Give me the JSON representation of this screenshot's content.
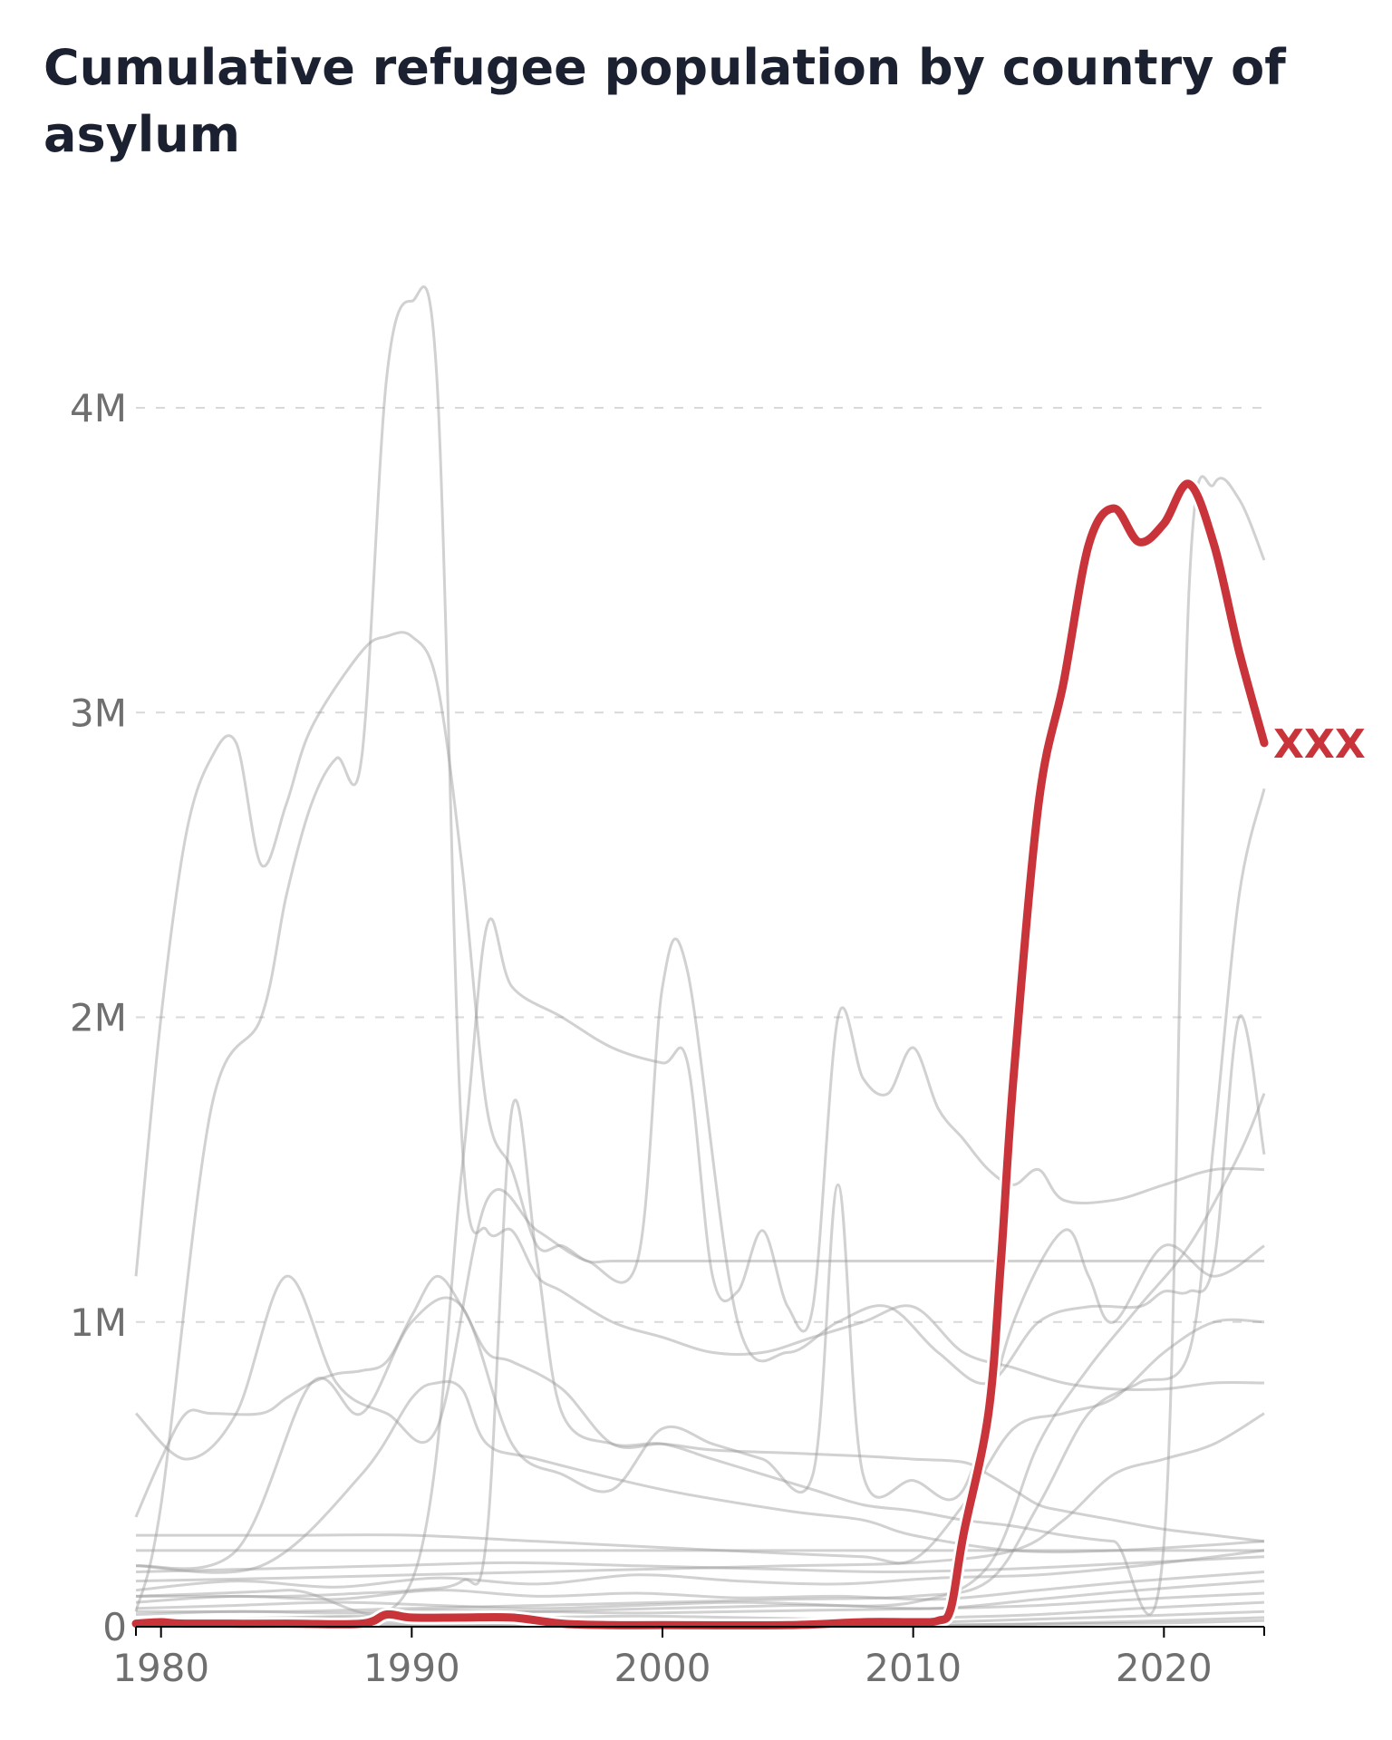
{
  "title": "Cumulative refugee population by country of asylum",
  "colors": {
    "highlight": "#c8343a",
    "background_lines": "#9a9a9a",
    "grid": "#d9d9d9"
  },
  "chart_data": {
    "type": "line",
    "title": "Cumulative refugee population by country of asylum",
    "xlabel": "",
    "ylabel": "",
    "xlim": [
      1979,
      2024
    ],
    "ylim": [
      0,
      4000000
    ],
    "x_ticks": [
      1980,
      1990,
      2000,
      2010,
      2020
    ],
    "x_tick_labels": [
      "1980",
      "1990",
      "2000",
      "2010",
      "2020"
    ],
    "y_ticks": [
      0,
      1000000,
      2000000,
      3000000,
      4000000
    ],
    "y_tick_labels": [
      "0",
      "1M",
      "2M",
      "3M",
      "4M"
    ],
    "grid": "horizontal dashed",
    "highlight": {
      "label": "XXX",
      "x": [
        1979,
        1980,
        1981,
        1985,
        1988,
        1989,
        1990,
        1992,
        1994,
        1996,
        1998,
        2000,
        2005,
        2008,
        2010,
        2011,
        2011.5,
        2012,
        2013,
        2013.5,
        2014,
        2015,
        2016,
        2017,
        2018,
        2019,
        2020,
        2021,
        2022,
        2023,
        2024
      ],
      "y": [
        10000,
        15000,
        10000,
        10000,
        10000,
        40000,
        30000,
        30000,
        30000,
        10000,
        5000,
        5000,
        5000,
        15000,
        15000,
        20000,
        60000,
        300000,
        700000,
        1200000,
        1800000,
        2700000,
        3100000,
        3550000,
        3670000,
        3560000,
        3620000,
        3750000,
        3550000,
        3200000,
        2900000
      ]
    },
    "series": [
      {
        "x": [
          1979,
          1980,
          1981,
          1982,
          1984,
          1985,
          1986,
          1987,
          1988,
          1989,
          1990,
          1991,
          1992,
          1993,
          1994,
          1996,
          1998,
          2000,
          2002,
          2005,
          2008,
          2010,
          2012,
          2013,
          2014,
          2015,
          2016,
          2018,
          2020,
          2022,
          2024
        ],
        "y": [
          360000,
          550000,
          700000,
          700000,
          700000,
          750000,
          800000,
          830000,
          840000,
          870000,
          1020000,
          1150000,
          1050000,
          900000,
          870000,
          780000,
          600000,
          600000,
          580000,
          570000,
          560000,
          550000,
          540000,
          500000,
          450000,
          400000,
          380000,
          350000,
          320000,
          300000,
          280000
        ]
      },
      {
        "x": [
          1979,
          1980,
          1981,
          1982,
          1983,
          1984,
          1985,
          1986,
          1988,
          1989,
          1990,
          1991,
          1992,
          1993,
          1994,
          1995,
          1996,
          1997,
          1998,
          2000,
          2002,
          2004,
          2006,
          2008,
          2010,
          2012,
          2014,
          2016,
          2018,
          2020,
          2022,
          2024
        ],
        "y": [
          1150000,
          2000000,
          2600000,
          2850000,
          2900000,
          2500000,
          2700000,
          2950000,
          3200000,
          3250000,
          3250000,
          3100000,
          2500000,
          1700000,
          1500000,
          1250000,
          1250000,
          1200000,
          1200000,
          1200000,
          1200000,
          1200000,
          1200000,
          1200000,
          1200000,
          1200000,
          1200000,
          1200000,
          1200000,
          1200000,
          1200000,
          1200000
        ]
      },
      {
        "x": [
          1979,
          1980,
          1982,
          1984,
          1985,
          1986,
          1987,
          1988,
          1989,
          1990,
          1991,
          1992,
          1993,
          1994,
          1995,
          1996,
          1998,
          2000,
          2002,
          2004,
          2006,
          2008,
          2010,
          2012,
          2014,
          2016,
          2018,
          2020,
          2022,
          2024
        ],
        "y": [
          50000,
          400000,
          1700000,
          2000000,
          2400000,
          2700000,
          2850000,
          2850000,
          4100000,
          4350000,
          4100000,
          1600000,
          1300000,
          1300000,
          1150000,
          1100000,
          1000000,
          950000,
          900000,
          900000,
          950000,
          1000000,
          1050000,
          900000,
          850000,
          800000,
          780000,
          780000,
          800000,
          800000
        ]
      },
      {
        "x": [
          1979,
          1985,
          1990,
          1992,
          1993,
          1994,
          1996,
          1998,
          2000,
          2001,
          2002,
          2003,
          2004,
          2005,
          2006,
          2007,
          2008,
          2009,
          2010,
          2011,
          2012,
          2013,
          2014,
          2015,
          2016,
          2018,
          2020,
          2022,
          2024
        ],
        "y": [
          100000,
          120000,
          150000,
          1500000,
          2300000,
          2100000,
          2000000,
          1900000,
          1850000,
          1850000,
          1150000,
          1100000,
          1300000,
          1050000,
          1050000,
          2000000,
          1800000,
          1750000,
          1900000,
          1700000,
          1600000,
          1500000,
          1450000,
          1500000,
          1400000,
          1400000,
          1450000,
          1500000,
          1500000
        ]
      },
      {
        "x": [
          1979,
          1981,
          1983,
          1985,
          1987,
          1989,
          1991,
          1993,
          1995,
          1997,
          1999,
          2000,
          2001,
          2003,
          2005,
          2007,
          2009,
          2011,
          2013,
          2015,
          2017,
          2019,
          2020,
          2021,
          2022,
          2023,
          2024
        ],
        "y": [
          700000,
          550000,
          700000,
          1150000,
          800000,
          700000,
          650000,
          1400000,
          1300000,
          1200000,
          1200000,
          2100000,
          2150000,
          1000000,
          900000,
          1000000,
          1050000,
          900000,
          800000,
          1000000,
          1050000,
          1050000,
          1100000,
          1100000,
          1200000,
          2000000,
          1550000
        ]
      },
      {
        "x": [
          1979,
          1982,
          1985,
          1988,
          1990,
          1992,
          1993,
          1994,
          1995,
          1996,
          1998,
          2000,
          2002,
          2004,
          2006,
          2008,
          2010,
          2012,
          2014,
          2016,
          2018,
          2020,
          2021,
          2022,
          2023,
          2024
        ],
        "y": [
          100000,
          100000,
          100000,
          110000,
          120000,
          150000,
          300000,
          1700000,
          1200000,
          700000,
          600000,
          600000,
          550000,
          500000,
          450000,
          400000,
          380000,
          350000,
          330000,
          300000,
          280000,
          270000,
          3400000,
          3750000,
          3700000,
          3500000
        ]
      },
      {
        "x": [
          1979,
          1983,
          1986,
          1988,
          1990,
          1992,
          1994,
          1996,
          1998,
          2000,
          2002,
          2004,
          2006,
          2007,
          2008,
          2010,
          2012,
          2014,
          2016,
          2017,
          2018,
          2020,
          2022,
          2024
        ],
        "y": [
          200000,
          250000,
          800000,
          700000,
          1000000,
          1050000,
          600000,
          500000,
          450000,
          650000,
          600000,
          550000,
          500000,
          1450000,
          500000,
          480000,
          450000,
          1000000,
          1300000,
          1150000,
          1000000,
          1250000,
          1150000,
          1250000
        ]
      },
      {
        "x": [
          1979,
          1985,
          1990,
          1995,
          2000,
          2005,
          2010,
          2013,
          2015,
          2017,
          2019,
          2021,
          2022,
          2023,
          2024
        ],
        "y": [
          50000,
          50000,
          60000,
          70000,
          80000,
          90000,
          100000,
          150000,
          400000,
          700000,
          800000,
          900000,
          1600000,
          2400000,
          2750000
        ]
      },
      {
        "x": [
          1979,
          1985,
          1990,
          1995,
          2000,
          2005,
          2010,
          2013,
          2015,
          2017,
          2019,
          2021,
          2023,
          2024
        ],
        "y": [
          20000,
          30000,
          40000,
          50000,
          60000,
          70000,
          80000,
          200000,
          600000,
          850000,
          1050000,
          1250000,
          1550000,
          1750000
        ]
      },
      {
        "x": [
          1979,
          1984,
          1988,
          1990,
          1991,
          1992,
          1993,
          1995,
          2000,
          2005,
          2008,
          2010,
          2014,
          2018,
          2024
        ],
        "y": [
          200000,
          200000,
          500000,
          750000,
          800000,
          780000,
          600000,
          550000,
          450000,
          380000,
          350000,
          300000,
          250000,
          250000,
          280000
        ]
      },
      {
        "x": [
          1979,
          1985,
          1990,
          1995,
          2000,
          2005,
          2008,
          2010,
          2012,
          2014,
          2016,
          2018,
          2020,
          2022,
          2024
        ],
        "y": [
          300000,
          300000,
          300000,
          280000,
          260000,
          240000,
          230000,
          220000,
          400000,
          650000,
          700000,
          750000,
          900000,
          1000000,
          1000000
        ]
      },
      {
        "x": [
          1979,
          1985,
          1990,
          1995,
          2000,
          2005,
          2010,
          2014,
          2016,
          2018,
          2020,
          2022,
          2024
        ],
        "y": [
          150000,
          160000,
          170000,
          180000,
          190000,
          200000,
          210000,
          250000,
          350000,
          500000,
          550000,
          600000,
          700000
        ]
      },
      {
        "x": [
          1979,
          1984,
          1989,
          1994,
          1999,
          2004,
          2009,
          2014,
          2019,
          2024
        ],
        "y": [
          250000,
          250000,
          250000,
          250000,
          250000,
          250000,
          250000,
          250000,
          250000,
          250000
        ]
      },
      {
        "x": [
          1979,
          1984,
          1989,
          1994,
          1999,
          2004,
          2009,
          2014,
          2019,
          2024
        ],
        "y": [
          180000,
          190000,
          200000,
          210000,
          200000,
          190000,
          180000,
          190000,
          210000,
          230000
        ]
      },
      {
        "x": [
          1979,
          1983,
          1987,
          1991,
          1995,
          1999,
          2003,
          2007,
          2011,
          2015,
          2019,
          2024
        ],
        "y": [
          120000,
          150000,
          130000,
          160000,
          140000,
          170000,
          150000,
          140000,
          160000,
          170000,
          200000,
          250000
        ]
      },
      {
        "x": [
          1979,
          1983,
          1987,
          1991,
          1995,
          1999,
          2003,
          2007,
          2011,
          2015,
          2019,
          2024
        ],
        "y": [
          80000,
          100000,
          90000,
          120000,
          100000,
          110000,
          95000,
          100000,
          90000,
          120000,
          150000,
          180000
        ]
      },
      {
        "x": [
          1979,
          1983,
          1987,
          1991,
          1995,
          1999,
          2003,
          2007,
          2011,
          2015,
          2019,
          2024
        ],
        "y": [
          60000,
          70000,
          80000,
          70000,
          60000,
          70000,
          80000,
          70000,
          60000,
          90000,
          120000,
          150000
        ]
      },
      {
        "x": [
          1979,
          1983,
          1987,
          1991,
          1995,
          1999,
          2003,
          2007,
          2011,
          2015,
          2019,
          2024
        ],
        "y": [
          40000,
          50000,
          45000,
          55000,
          50000,
          45000,
          50000,
          55000,
          60000,
          70000,
          90000,
          110000
        ]
      },
      {
        "x": [
          1979,
          1983,
          1987,
          1991,
          1995,
          1999,
          2003,
          2007,
          2011,
          2015,
          2019,
          2024
        ],
        "y": [
          20000,
          25000,
          30000,
          25000,
          30000,
          35000,
          30000,
          25000,
          30000,
          40000,
          60000,
          80000
        ]
      },
      {
        "x": [
          1979,
          1983,
          1987,
          1991,
          1995,
          1999,
          2003,
          2007,
          2011,
          2015,
          2019,
          2024
        ],
        "y": [
          10000,
          12000,
          15000,
          12000,
          15000,
          18000,
          15000,
          12000,
          15000,
          25000,
          35000,
          50000
        ]
      },
      {
        "x": [
          1979,
          1990,
          2000,
          2010,
          2015,
          2020,
          2024
        ],
        "y": [
          5000,
          5000,
          5000,
          5000,
          10000,
          20000,
          30000
        ]
      },
      {
        "x": [
          1979,
          1990,
          2000,
          2010,
          2015,
          2020,
          2024
        ],
        "y": [
          2000,
          3000,
          4000,
          5000,
          8000,
          12000,
          20000
        ]
      }
    ]
  }
}
